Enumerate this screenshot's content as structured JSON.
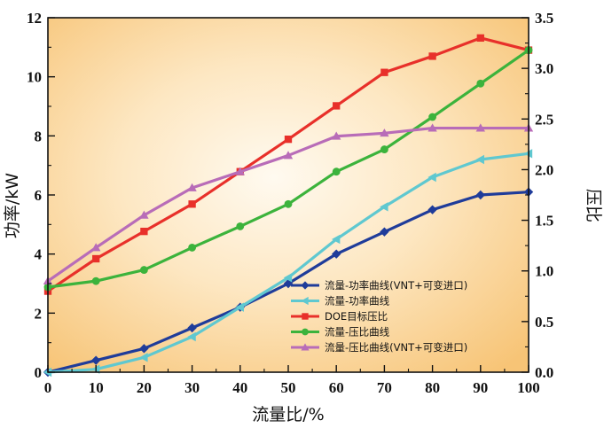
{
  "chart_data": {
    "type": "line",
    "xlabel": "流量比/%",
    "ylabel_left": "功率/kW",
    "ylabel_right": "压比",
    "x": [
      0,
      10,
      20,
      30,
      40,
      50,
      60,
      70,
      80,
      90,
      100
    ],
    "xlim": [
      0,
      100
    ],
    "ylim_left": [
      0,
      12
    ],
    "ylim_right": [
      0,
      3.5
    ],
    "x_ticks": [
      "0",
      "10",
      "20",
      "30",
      "40",
      "50",
      "60",
      "70",
      "80",
      "90",
      "100"
    ],
    "y_left_ticks": [
      "0",
      "2",
      "4",
      "6",
      "8",
      "10",
      "12"
    ],
    "y_right_ticks": [
      "0.0",
      "0.5",
      "1.0",
      "1.5",
      "2.0",
      "2.5",
      "3.0",
      "3.5"
    ],
    "legend_position": "bottom-right",
    "series": [
      {
        "name": "流量-功率曲线(VNT+可变进口)",
        "axis": "left",
        "color": "#1f3c9a",
        "marker": "diamond",
        "values": [
          0,
          0.4,
          0.8,
          1.5,
          2.2,
          3.0,
          4.0,
          4.75,
          5.5,
          6.0,
          6.1
        ]
      },
      {
        "name": "流量-功率曲线",
        "axis": "left",
        "color": "#5fc8d0",
        "marker": "triangle-left",
        "values": [
          0,
          0.1,
          0.5,
          1.2,
          2.2,
          3.2,
          4.5,
          5.6,
          6.6,
          7.2,
          7.4
        ]
      },
      {
        "name": "DOE目标压比",
        "axis": "right",
        "color": "#e8302a",
        "marker": "square",
        "values": [
          0.8,
          1.12,
          1.39,
          1.66,
          1.98,
          2.3,
          2.63,
          2.96,
          3.12,
          3.3,
          3.18
        ]
      },
      {
        "name": "流量-压比曲线",
        "axis": "right",
        "color": "#3cb33c",
        "marker": "circle",
        "values": [
          0.84,
          0.9,
          1.01,
          1.23,
          1.44,
          1.66,
          1.98,
          2.2,
          2.52,
          2.85,
          3.18
        ]
      },
      {
        "name": "流量-压比曲线(VNT+可变进口)",
        "axis": "right",
        "color": "#b86cb8",
        "marker": "triangle-up",
        "values": [
          0.9,
          1.23,
          1.55,
          1.82,
          1.98,
          2.14,
          2.33,
          2.36,
          2.41,
          2.41,
          2.41
        ]
      }
    ]
  }
}
